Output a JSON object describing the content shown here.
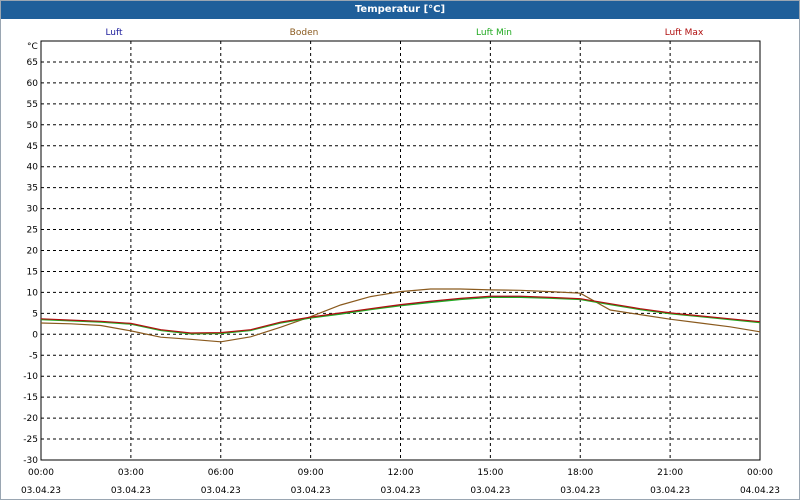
{
  "window": {
    "title": "Temperatur [°C]"
  },
  "colors": {
    "Luft": "#1c1c9c",
    "Boden": "#8a5a1e",
    "Luft Min": "#22aa22",
    "Luft Max": "#b01010"
  },
  "chart_data": {
    "type": "line",
    "title": "Temperatur [°C]",
    "ylabel": "°C",
    "xlabel": "",
    "ylim": [
      -30,
      70
    ],
    "yticks": [
      65,
      60,
      55,
      50,
      45,
      40,
      35,
      30,
      25,
      20,
      15,
      10,
      5,
      0,
      -5,
      -10,
      -15,
      -20,
      -25,
      -30
    ],
    "xticks": [
      {
        "time": "00:00",
        "date": "03.04.23"
      },
      {
        "time": "03:00",
        "date": "03.04.23"
      },
      {
        "time": "06:00",
        "date": "03.04.23"
      },
      {
        "time": "09:00",
        "date": "03.04.23"
      },
      {
        "time": "12:00",
        "date": "03.04.23"
      },
      {
        "time": "15:00",
        "date": "03.04.23"
      },
      {
        "time": "18:00",
        "date": "03.04.23"
      },
      {
        "time": "21:00",
        "date": "03.04.23"
      },
      {
        "time": "00:00",
        "date": "04.04.23"
      }
    ],
    "grid": true,
    "legend_position": "top",
    "x_unit": "hours",
    "series": [
      {
        "name": "Luft",
        "x": [
          0,
          1,
          2,
          3,
          4,
          5,
          6,
          7,
          8,
          9,
          10,
          11,
          12,
          13,
          14,
          15,
          16,
          17,
          18,
          19,
          20,
          21,
          22,
          23,
          24
        ],
        "values": [
          3.6,
          3.3,
          3.0,
          2.5,
          1.0,
          0.2,
          0.3,
          1.0,
          2.8,
          4.0,
          5.0,
          6.0,
          7.0,
          7.8,
          8.5,
          9.0,
          9.0,
          8.7,
          8.4,
          7.2,
          6.0,
          5.0,
          4.3,
          3.6,
          2.9
        ]
      },
      {
        "name": "Boden",
        "x": [
          0,
          1,
          2,
          3,
          4,
          5,
          6,
          7,
          8,
          9,
          10,
          11,
          12,
          13,
          14,
          15,
          16,
          17,
          18,
          19,
          20,
          21,
          22,
          23,
          24
        ],
        "values": [
          2.7,
          2.5,
          2.1,
          0.8,
          -0.7,
          -1.2,
          -1.8,
          -0.6,
          1.7,
          4.2,
          7.0,
          9.0,
          10.2,
          10.8,
          10.8,
          10.6,
          10.5,
          10.2,
          9.8,
          5.8,
          4.7,
          3.6,
          2.7,
          1.8,
          0.6
        ]
      },
      {
        "name": "Luft Min",
        "x": [
          0,
          1,
          2,
          3,
          4,
          5,
          6,
          7,
          8,
          9,
          10,
          11,
          12,
          13,
          14,
          15,
          16,
          17,
          18,
          19,
          20,
          21,
          22,
          23,
          24
        ],
        "values": [
          3.5,
          3.2,
          2.9,
          2.4,
          0.9,
          0.1,
          0.2,
          0.9,
          2.7,
          3.9,
          4.8,
          5.9,
          6.8,
          7.6,
          8.3,
          8.8,
          8.8,
          8.6,
          8.3,
          7.1,
          5.9,
          4.9,
          4.2,
          3.5,
          2.8
        ]
      },
      {
        "name": "Luft Max",
        "x": [
          0,
          1,
          2,
          3,
          4,
          5,
          6,
          7,
          8,
          9,
          10,
          11,
          12,
          13,
          14,
          15,
          16,
          17,
          18,
          19,
          20,
          21,
          22,
          23,
          24
        ],
        "values": [
          3.7,
          3.4,
          3.1,
          2.6,
          1.1,
          0.3,
          0.4,
          1.1,
          2.9,
          4.1,
          5.1,
          6.1,
          7.1,
          7.9,
          8.6,
          9.1,
          9.1,
          8.8,
          8.5,
          7.3,
          6.1,
          5.1,
          4.4,
          3.7,
          3.0
        ]
      }
    ]
  }
}
